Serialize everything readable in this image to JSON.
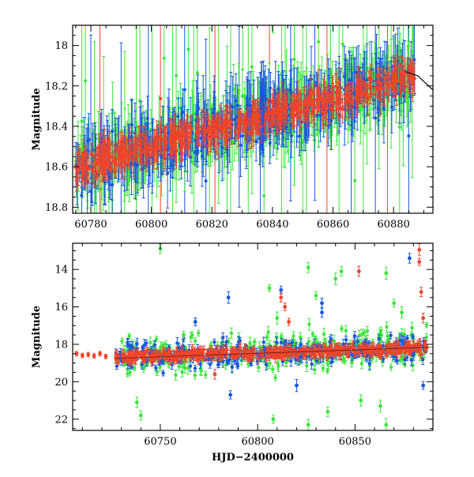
{
  "chart_data": [
    {
      "type": "scatter",
      "panel": "top",
      "title": "",
      "xlabel": "",
      "ylabel": "Magnitude",
      "xlim": [
        60774,
        60893
      ],
      "ylim": [
        18.83,
        17.9
      ],
      "y_inverted": true,
      "grid": false,
      "legend": "none",
      "xticks": [
        60780,
        60800,
        60820,
        60840,
        60860,
        60880
      ],
      "yticks": [
        18,
        18.2,
        18.4,
        18.6,
        18.8
      ],
      "colors": {
        "blue": "#1a55e0",
        "green": "#3ce63c",
        "red": "#f0442a"
      },
      "trend": {
        "start": [
          60775,
          18.6
        ],
        "end": [
          60887,
          18.15
        ],
        "scatter": 0.045
      },
      "outlier_x": [
        60777,
        60780,
        60783,
        60786,
        60790,
        60795,
        60799,
        60803,
        60807,
        60811,
        60814,
        60818,
        60821,
        60825,
        60829,
        60832,
        60836,
        60839,
        60843,
        60846,
        60850,
        60854,
        60858,
        60862,
        60866,
        60870,
        60874,
        60878,
        60882,
        60885
      ],
      "model_curve": [
        [
          60884,
          18.13
        ],
        [
          60888,
          18.15
        ],
        [
          60893,
          18.22
        ]
      ]
    },
    {
      "type": "scatter",
      "panel": "bottom",
      "title": "",
      "xlabel": "HJD−2400000",
      "ylabel": "Magnitude",
      "xlim": [
        60705,
        60890
      ],
      "ylim": [
        22.6,
        12.6
      ],
      "y_inverted": true,
      "grid": false,
      "legend": "none",
      "xticks": [
        60750,
        60800,
        60850
      ],
      "yticks": [
        14,
        16,
        18,
        20,
        22
      ],
      "colors": {
        "blue": "#1a55e0",
        "green": "#3ce63c",
        "red": "#f0442a"
      },
      "early_points": [
        [
          60707,
          18.5
        ],
        [
          60710,
          18.6
        ],
        [
          60713,
          18.55
        ],
        [
          60716,
          18.62
        ],
        [
          60719,
          18.5
        ],
        [
          60722,
          18.65
        ]
      ],
      "trend": {
        "start": [
          60727,
          18.7
        ],
        "end": [
          60887,
          18.2
        ]
      },
      "outliers": [
        {
          "x": 60750,
          "y": 12.9,
          "c": "green"
        },
        {
          "x": 60768,
          "y": 16.8,
          "c": "blue"
        },
        {
          "x": 60785,
          "y": 15.5,
          "c": "blue"
        },
        {
          "x": 60812,
          "y": 15.1,
          "c": "blue"
        },
        {
          "x": 60812,
          "y": 15.5,
          "c": "red"
        },
        {
          "x": 60814,
          "y": 16.0,
          "c": "red"
        },
        {
          "x": 60810,
          "y": 16.6,
          "c": "green"
        },
        {
          "x": 60816,
          "y": 16.8,
          "c": "red"
        },
        {
          "x": 60833,
          "y": 15.8,
          "c": "blue"
        },
        {
          "x": 60833,
          "y": 16.3,
          "c": "blue"
        },
        {
          "x": 60840,
          "y": 14.5,
          "c": "green"
        },
        {
          "x": 60843,
          "y": 14.1,
          "c": "green"
        },
        {
          "x": 60852,
          "y": 14.1,
          "c": "red"
        },
        {
          "x": 60866,
          "y": 14.2,
          "c": "green"
        },
        {
          "x": 60878,
          "y": 13.4,
          "c": "blue"
        },
        {
          "x": 60883,
          "y": 12.95,
          "c": "red"
        },
        {
          "x": 60883,
          "y": 13.6,
          "c": "red"
        },
        {
          "x": 60884,
          "y": 15.2,
          "c": "red"
        },
        {
          "x": 60885,
          "y": 16.6,
          "c": "red"
        },
        {
          "x": 60826,
          "y": 13.9,
          "c": "green"
        },
        {
          "x": 60830,
          "y": 15.4,
          "c": "green"
        },
        {
          "x": 60806,
          "y": 15.0,
          "c": "green"
        },
        {
          "x": 60870,
          "y": 15.8,
          "c": "green"
        },
        {
          "x": 60874,
          "y": 16.3,
          "c": "green"
        },
        {
          "x": 60762,
          "y": 17.5,
          "c": "green"
        },
        {
          "x": 60738,
          "y": 21.1,
          "c": "green"
        },
        {
          "x": 60740,
          "y": 21.8,
          "c": "green"
        },
        {
          "x": 60808,
          "y": 22.0,
          "c": "green"
        },
        {
          "x": 60826,
          "y": 22.3,
          "c": "green"
        },
        {
          "x": 60836,
          "y": 21.6,
          "c": "green"
        },
        {
          "x": 60863,
          "y": 21.3,
          "c": "green"
        },
        {
          "x": 60866,
          "y": 22.3,
          "c": "green"
        },
        {
          "x": 60853,
          "y": 21.0,
          "c": "green"
        },
        {
          "x": 60786,
          "y": 20.7,
          "c": "blue"
        },
        {
          "x": 60820,
          "y": 20.2,
          "c": "blue"
        },
        {
          "x": 60885,
          "y": 20.2,
          "c": "blue"
        },
        {
          "x": 60778,
          "y": 19.6,
          "c": "red"
        }
      ]
    }
  ]
}
